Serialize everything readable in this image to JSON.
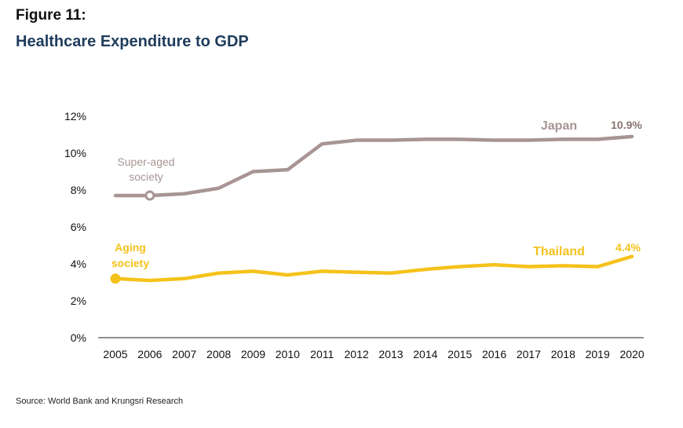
{
  "figure_label": "Figure 11:",
  "title": "Healthcare Expenditure to GDP",
  "source": "Source: World Bank and Krungsri Research",
  "chart_data": {
    "type": "line",
    "x": [
      2005,
      2006,
      2007,
      2008,
      2009,
      2010,
      2011,
      2012,
      2013,
      2014,
      2015,
      2016,
      2017,
      2018,
      2019,
      2020
    ],
    "ylim": [
      0,
      12
    ],
    "y_ticks": [
      "0%",
      "2%",
      "4%",
      "6%",
      "8%",
      "10%",
      "12%"
    ],
    "grid": false,
    "series": [
      {
        "name": "Japan",
        "color": "#a89494",
        "values": [
          7.7,
          7.7,
          7.8,
          8.1,
          9.0,
          9.1,
          10.5,
          10.7,
          10.7,
          10.75,
          10.75,
          10.7,
          10.7,
          10.75,
          10.75,
          10.9
        ],
        "end_label": "10.9%",
        "marker": {
          "x": 2006,
          "label_line1": "Super-aged",
          "label_line2": "society"
        }
      },
      {
        "name": "Thailand",
        "color": "#f5c21b",
        "values": [
          3.2,
          3.1,
          3.2,
          3.5,
          3.6,
          3.4,
          3.6,
          3.55,
          3.5,
          3.7,
          3.85,
          3.95,
          3.85,
          3.9,
          3.85,
          4.4
        ],
        "end_label": "4.4%",
        "marker": {
          "x": 2005,
          "label_line1": "Aging",
          "label_line2": "society"
        }
      }
    ]
  }
}
